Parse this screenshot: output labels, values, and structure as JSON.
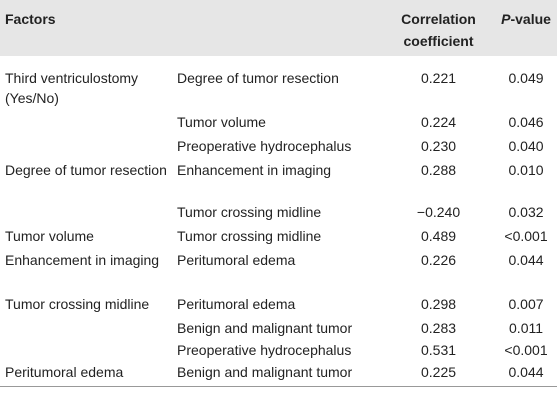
{
  "table": {
    "header": {
      "factors": "Factors",
      "correlation": "Correlation coefficient",
      "p_value": {
        "italic": "P",
        "rest": "-value"
      }
    },
    "rows": [
      [
        "Third ventriculostomy (Yes/No)",
        "Degree of tumor resection",
        "0.221",
        "0.049"
      ],
      [
        "",
        "Tumor volume",
        "0.224",
        "0.046"
      ],
      [
        "",
        "Preoperative hydrocephalus",
        "0.230",
        "0.040"
      ],
      [
        "Degree of tumor resection",
        "Enhancement in imaging",
        "0.288",
        "0.010"
      ],
      [
        "",
        "Tumor crossing midline",
        "−0.240",
        "0.032"
      ],
      [
        "Tumor volume",
        "Tumor crossing midline",
        "0.489",
        "<0.001"
      ],
      [
        "Enhancement in imaging",
        "Peritumoral edema",
        "0.226",
        "0.044"
      ],
      [
        "Tumor crossing midline",
        "Peritumoral edema",
        "0.298",
        "0.007"
      ],
      [
        "",
        "Benign and malignant tumor",
        "0.283",
        "0.011"
      ],
      [
        "",
        "Preoperative hydrocephalus",
        "0.531",
        "<0.001"
      ],
      [
        "Peritumoral edema",
        "Benign and malignant tumor",
        "0.225",
        "0.044"
      ]
    ]
  }
}
